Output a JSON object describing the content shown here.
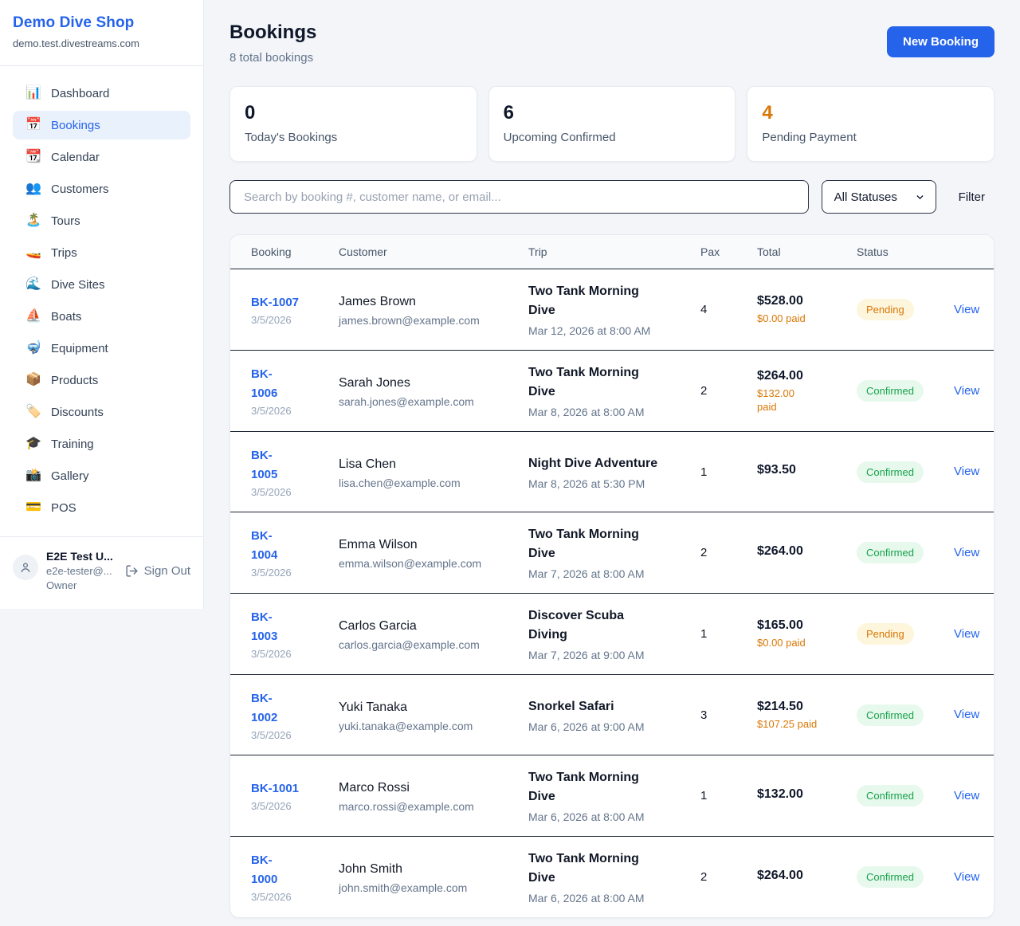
{
  "brand": {
    "name": "Demo Dive Shop",
    "domain": "demo.test.divestreams.com"
  },
  "sidebar": {
    "items": [
      {
        "icon": "📊",
        "label": "Dashboard",
        "active": false
      },
      {
        "icon": "📅",
        "label": "Bookings",
        "active": true
      },
      {
        "icon": "📆",
        "label": "Calendar",
        "active": false
      },
      {
        "icon": "👥",
        "label": "Customers",
        "active": false
      },
      {
        "icon": "🏝️",
        "label": "Tours",
        "active": false
      },
      {
        "icon": "🚤",
        "label": "Trips",
        "active": false
      },
      {
        "icon": "🌊",
        "label": "Dive Sites",
        "active": false
      },
      {
        "icon": "⛵",
        "label": "Boats",
        "active": false
      },
      {
        "icon": "🤿",
        "label": "Equipment",
        "active": false
      },
      {
        "icon": "📦",
        "label": "Products",
        "active": false
      },
      {
        "icon": "🏷️",
        "label": "Discounts",
        "active": false
      },
      {
        "icon": "🎓",
        "label": "Training",
        "active": false
      },
      {
        "icon": "📸",
        "label": "Gallery",
        "active": false
      },
      {
        "icon": "💳",
        "label": "POS",
        "active": false
      }
    ],
    "user": {
      "name": "E2E Test U...",
      "email": "e2e-tester@...",
      "role": "Owner",
      "sign_out_label": "Sign Out"
    }
  },
  "header": {
    "title": "Bookings",
    "subtitle": "8 total bookings",
    "new_booking_label": "New Booking"
  },
  "stats": [
    {
      "value": "0",
      "label": "Today's Bookings",
      "value_color": "#0f172a"
    },
    {
      "value": "6",
      "label": "Upcoming Confirmed",
      "value_color": "#0f172a"
    },
    {
      "value": "4",
      "label": "Pending Payment",
      "value_color": "#d97706"
    }
  ],
  "filters": {
    "search_placeholder": "Search by booking #, customer name, or email...",
    "status_selected": "All Statuses",
    "filter_label": "Filter"
  },
  "table": {
    "columns": [
      "Booking",
      "Customer",
      "Trip",
      "Pax",
      "Total",
      "Status"
    ],
    "view_label": "View",
    "rows": [
      {
        "id": "BK-1007",
        "id_lines": [
          "BK-1007"
        ],
        "booked_date": "3/5/2026",
        "name": "James Brown",
        "email": "james.brown@example.com",
        "trip": "Two Tank Morning Dive",
        "trip_lines": [
          "Two Tank Morning",
          "Dive"
        ],
        "trip_datetime": "Mar 12, 2026 at 8:00 AM",
        "pax": "4",
        "total": "$528.00",
        "paid": "$0.00 paid",
        "paid_lines": [
          "$0.00 paid"
        ],
        "status": "Pending"
      },
      {
        "id": "BK-1006",
        "id_lines": [
          "BK-",
          "1006"
        ],
        "booked_date": "3/5/2026",
        "name": "Sarah Jones",
        "email": "sarah.jones@example.com",
        "trip": "Two Tank Morning Dive",
        "trip_lines": [
          "Two Tank Morning",
          "Dive"
        ],
        "trip_datetime": "Mar 8, 2026 at 8:00 AM",
        "pax": "2",
        "total": "$264.00",
        "paid": "$132.00 paid",
        "paid_lines": [
          "$132.00",
          "paid"
        ],
        "status": "Confirmed"
      },
      {
        "id": "BK-1005",
        "id_lines": [
          "BK-",
          "1005"
        ],
        "booked_date": "3/5/2026",
        "name": "Lisa Chen",
        "email": "lisa.chen@example.com",
        "trip": "Night Dive Adventure",
        "trip_lines": [
          "Night Dive Adventure"
        ],
        "trip_datetime": "Mar 8, 2026 at 5:30 PM",
        "pax": "1",
        "total": "$93.50",
        "paid": "",
        "paid_lines": [],
        "status": "Confirmed"
      },
      {
        "id": "BK-1004",
        "id_lines": [
          "BK-",
          "1004"
        ],
        "booked_date": "3/5/2026",
        "name": "Emma Wilson",
        "email": "emma.wilson@example.com",
        "trip": "Two Tank Morning Dive",
        "trip_lines": [
          "Two Tank Morning",
          "Dive"
        ],
        "trip_datetime": "Mar 7, 2026 at 8:00 AM",
        "pax": "2",
        "total": "$264.00",
        "paid": "",
        "paid_lines": [],
        "status": "Confirmed"
      },
      {
        "id": "BK-1003",
        "id_lines": [
          "BK-",
          "1003"
        ],
        "booked_date": "3/5/2026",
        "name": "Carlos Garcia",
        "email": "carlos.garcia@example.com",
        "trip": "Discover Scuba Diving",
        "trip_lines": [
          "Discover Scuba",
          "Diving"
        ],
        "trip_datetime": "Mar 7, 2026 at 9:00 AM",
        "pax": "1",
        "total": "$165.00",
        "paid": "$0.00 paid",
        "paid_lines": [
          "$0.00 paid"
        ],
        "status": "Pending"
      },
      {
        "id": "BK-1002",
        "id_lines": [
          "BK-",
          "1002"
        ],
        "booked_date": "3/5/2026",
        "name": "Yuki Tanaka",
        "email": "yuki.tanaka@example.com",
        "trip": "Snorkel Safari",
        "trip_lines": [
          "Snorkel Safari"
        ],
        "trip_datetime": "Mar 6, 2026 at 9:00 AM",
        "pax": "3",
        "total": "$214.50",
        "paid": "$107.25 paid",
        "paid_lines": [
          "$107.25 paid"
        ],
        "status": "Confirmed"
      },
      {
        "id": "BK-1001",
        "id_lines": [
          "BK-1001"
        ],
        "booked_date": "3/5/2026",
        "name": "Marco Rossi",
        "email": "marco.rossi@example.com",
        "trip": "Two Tank Morning Dive",
        "trip_lines": [
          "Two Tank Morning",
          "Dive"
        ],
        "trip_datetime": "Mar 6, 2026 at 8:00 AM",
        "pax": "1",
        "total": "$132.00",
        "paid": "",
        "paid_lines": [],
        "status": "Confirmed"
      },
      {
        "id": "BK-1000",
        "id_lines": [
          "BK-",
          "1000"
        ],
        "booked_date": "3/5/2026",
        "name": "John Smith",
        "email": "john.smith@example.com",
        "trip": "Two Tank Morning Dive",
        "trip_lines": [
          "Two Tank Morning",
          "Dive"
        ],
        "trip_datetime": "Mar 6, 2026 at 8:00 AM",
        "pax": "2",
        "total": "$264.00",
        "paid": "",
        "paid_lines": [],
        "status": "Confirmed"
      }
    ]
  },
  "colors": {
    "accent_blue": "#2563eb",
    "pending_orange": "#d97706",
    "pending_badge_bg": "#fdf5dc",
    "confirmed_green": "#16a34a",
    "confirmed_badge_bg": "#e7f8ed"
  }
}
